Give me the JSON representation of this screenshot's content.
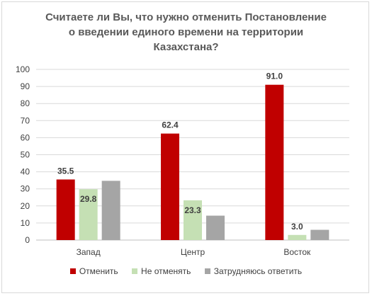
{
  "chart_data": {
    "type": "bar",
    "title_lines": [
      "Считаете ли Вы, что нужно отменить Постановление",
      "о введении единого времени на территории",
      "Казахстана?"
    ],
    "categories": [
      "Запад",
      "Центр",
      "Восток"
    ],
    "series": [
      {
        "name": "Отменить",
        "color": "#c00000",
        "values": [
          35.5,
          62.4,
          91.0
        ],
        "labels": [
          "35.5",
          "62.4",
          "91.0"
        ]
      },
      {
        "name": "Не отменять",
        "color": "#c5e0b4",
        "values": [
          29.8,
          23.3,
          3.0
        ],
        "labels": [
          "29.8",
          "23.3",
          "3.0"
        ]
      },
      {
        "name": "Затрудняюсь ответить",
        "color": "#a5a5a5",
        "values": [
          34.7,
          14.3,
          6.0
        ],
        "labels": [
          null,
          null,
          null
        ]
      }
    ],
    "ylim": [
      0,
      100
    ],
    "yticks": [
      "0",
      "10",
      "20",
      "30",
      "40",
      "50",
      "60",
      "70",
      "80",
      "90",
      "100"
    ],
    "grid": true,
    "legend_position": "bottom"
  }
}
